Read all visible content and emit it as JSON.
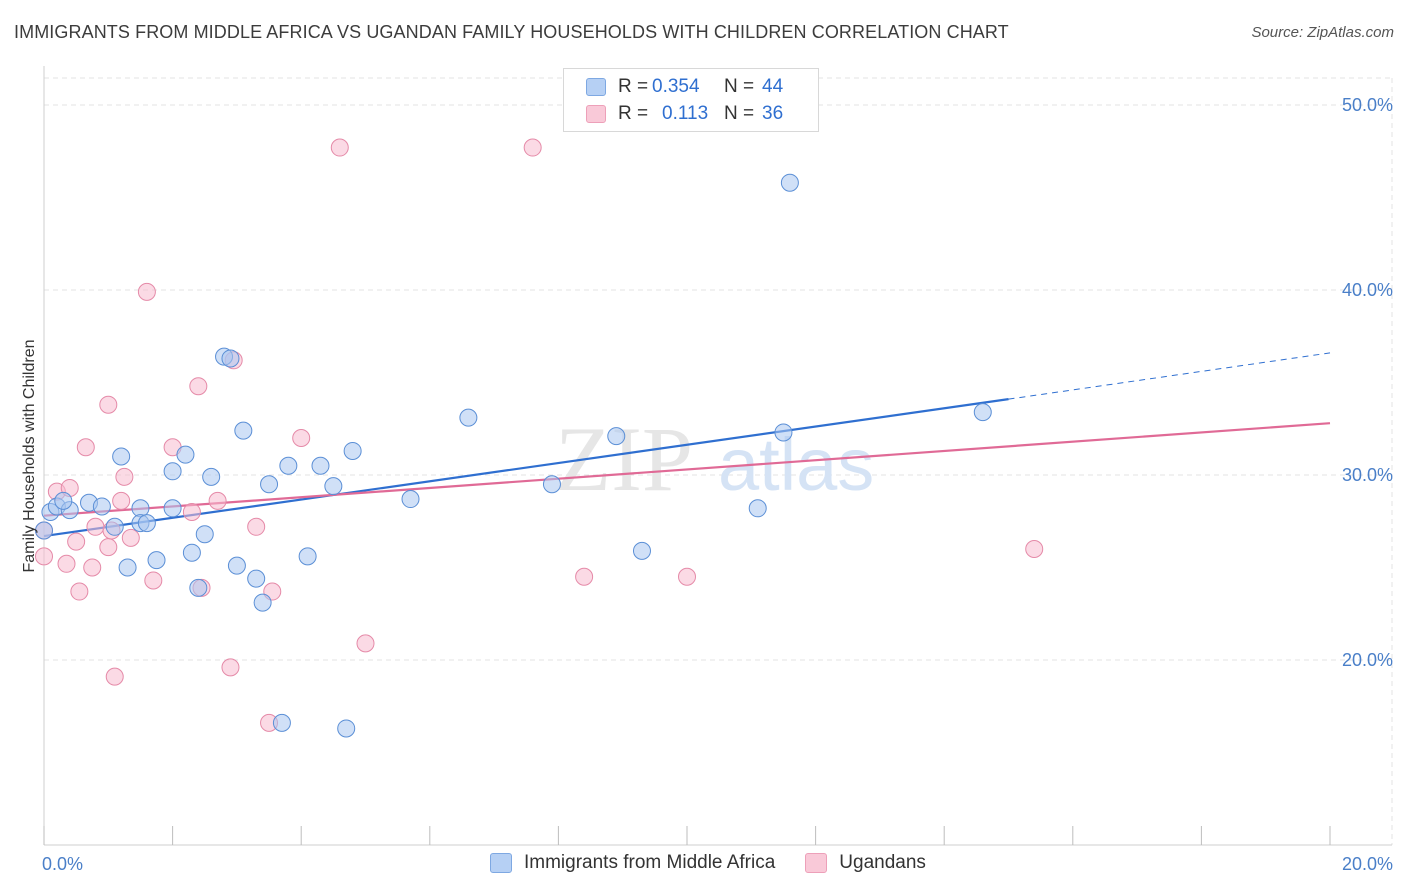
{
  "title": "IMMIGRANTS FROM MIDDLE AFRICA VS UGANDAN FAMILY HOUSEHOLDS WITH CHILDREN CORRELATION CHART",
  "source": "Source: ZipAtlas.com",
  "watermark": {
    "zip": "ZIP",
    "atlas": "atlas"
  },
  "legend": {
    "series1": {
      "r_label": "R =",
      "r_value": "0.354",
      "n_label": "N =",
      "n_value": "44"
    },
    "series2": {
      "r_label": "R =",
      "r_value": "0.113",
      "n_label": "N =",
      "n_value": "36"
    }
  },
  "bottom_legend": {
    "series1": "Immigrants from Middle Africa",
    "series2": "Ugandans"
  },
  "colors": {
    "blue_fill": "#a9c7f0",
    "blue_stroke": "#5b8fd6",
    "blue_line": "#2f6fd0",
    "pink_fill": "#f7bcd0",
    "pink_stroke": "#e58aa8",
    "pink_line": "#e06a96",
    "grid": "#e3e3e3",
    "tick_text": "#4a7fc8"
  },
  "chart_data": {
    "type": "scatter",
    "title": "IMMIGRANTS FROM MIDDLE AFRICA VS UGANDAN FAMILY HOUSEHOLDS WITH CHILDREN CORRELATION CHART",
    "xlabel": "",
    "ylabel": "Family Households with Children",
    "xlim": [
      0,
      20
    ],
    "ylim": [
      10,
      52
    ],
    "x_tick_labels": [
      "0.0%",
      "20.0%"
    ],
    "y_ticks": [
      20,
      30,
      40,
      50
    ],
    "y_tick_labels": [
      "20.0%",
      "30.0%",
      "40.0%",
      "50.0%"
    ],
    "grid": true,
    "series": [
      {
        "name": "Immigrants from Middle Africa",
        "color": "#5b8fd6",
        "points": [
          [
            0.1,
            28.0
          ],
          [
            0.2,
            28.3
          ],
          [
            0.4,
            28.1
          ],
          [
            0.7,
            28.5
          ],
          [
            0.9,
            28.3
          ],
          [
            1.1,
            27.2
          ],
          [
            1.2,
            31.0
          ],
          [
            1.3,
            25.0
          ],
          [
            1.5,
            28.2
          ],
          [
            1.5,
            27.4
          ],
          [
            1.6,
            27.4
          ],
          [
            1.75,
            25.4
          ],
          [
            2.0,
            30.2
          ],
          [
            2.0,
            28.2
          ],
          [
            2.2,
            31.1
          ],
          [
            2.3,
            25.8
          ],
          [
            2.4,
            23.9
          ],
          [
            2.5,
            26.8
          ],
          [
            2.6,
            29.9
          ],
          [
            2.8,
            36.4
          ],
          [
            2.9,
            36.3
          ],
          [
            3.0,
            25.1
          ],
          [
            3.1,
            32.4
          ],
          [
            3.3,
            24.4
          ],
          [
            3.4,
            23.1
          ],
          [
            3.5,
            29.5
          ],
          [
            3.7,
            16.6
          ],
          [
            3.8,
            30.5
          ],
          [
            4.1,
            25.6
          ],
          [
            4.3,
            30.5
          ],
          [
            4.5,
            29.4
          ],
          [
            4.7,
            16.3
          ],
          [
            4.8,
            31.3
          ],
          [
            5.7,
            28.7
          ],
          [
            6.6,
            33.1
          ],
          [
            7.9,
            29.5
          ],
          [
            8.9,
            32.1
          ],
          [
            9.3,
            25.9
          ],
          [
            11.1,
            28.2
          ],
          [
            11.5,
            32.3
          ],
          [
            11.6,
            45.8
          ],
          [
            14.6,
            33.4
          ],
          [
            0.0,
            27.0
          ],
          [
            0.3,
            28.6
          ]
        ],
        "trend": {
          "x_start": 0,
          "y_start": 26.7,
          "x_end": 15.0,
          "y_end": 34.1,
          "x_dash_end": 20.0,
          "y_dash_end": 36.6
        }
      },
      {
        "name": "Ugandans",
        "color": "#e58aa8",
        "points": [
          [
            0.0,
            25.6
          ],
          [
            0.0,
            27.0
          ],
          [
            0.2,
            29.1
          ],
          [
            0.35,
            25.2
          ],
          [
            0.4,
            29.3
          ],
          [
            0.5,
            26.4
          ],
          [
            0.55,
            23.7
          ],
          [
            0.65,
            31.5
          ],
          [
            0.75,
            25.0
          ],
          [
            0.8,
            27.2
          ],
          [
            1.0,
            26.1
          ],
          [
            1.0,
            33.8
          ],
          [
            1.05,
            27.0
          ],
          [
            1.1,
            19.1
          ],
          [
            1.2,
            28.6
          ],
          [
            1.25,
            29.9
          ],
          [
            1.35,
            26.6
          ],
          [
            1.6,
            39.9
          ],
          [
            1.7,
            24.3
          ],
          [
            2.0,
            31.5
          ],
          [
            2.3,
            28.0
          ],
          [
            2.4,
            34.8
          ],
          [
            2.45,
            23.9
          ],
          [
            2.7,
            28.6
          ],
          [
            2.9,
            19.6
          ],
          [
            2.95,
            36.2
          ],
          [
            3.3,
            27.2
          ],
          [
            3.5,
            16.6
          ],
          [
            3.55,
            23.7
          ],
          [
            4.0,
            32.0
          ],
          [
            4.6,
            47.7
          ],
          [
            5.0,
            20.9
          ],
          [
            7.6,
            47.7
          ],
          [
            8.4,
            24.5
          ],
          [
            10.0,
            24.5
          ],
          [
            15.4,
            26.0
          ]
        ],
        "trend": {
          "x_start": 0,
          "y_start": 27.8,
          "x_end": 20.0,
          "y_end": 32.8
        }
      }
    ]
  }
}
